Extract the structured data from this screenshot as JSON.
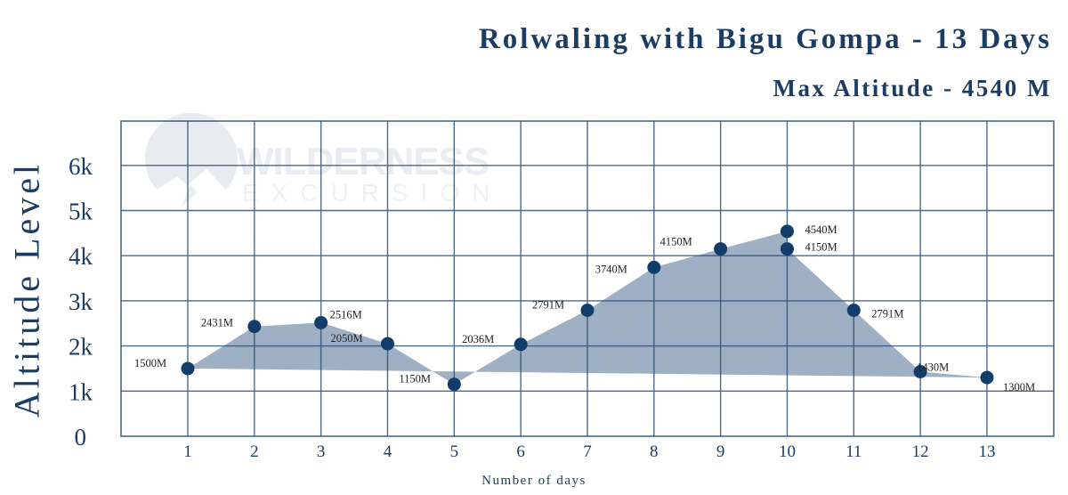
{
  "header": {
    "title": "Rolwaling with Bigu Gompa - 13 Days",
    "subtitle": "Max Altitude - 4540 M"
  },
  "watermark": {
    "line1": "WILDERNESS",
    "line2": "EXCURSION"
  },
  "colors": {
    "primary": "#1b3d63",
    "marker": "#123d6a",
    "fill": "#9fb0c5",
    "grid": "#2c4f78",
    "background": "#ffffff"
  },
  "chart_data": {
    "type": "area",
    "title": "Rolwaling with Bigu Gompa - 13 Days",
    "subtitle": "Max Altitude - 4540 M",
    "xlabel": "Number of days",
    "ylabel": "Altitude Level",
    "x_ticks": [
      "1",
      "2",
      "3",
      "4",
      "5",
      "6",
      "7",
      "8",
      "9",
      "10",
      "11",
      "12",
      "13"
    ],
    "y_ticks": [
      "0",
      "1k",
      "2k",
      "3k",
      "4k",
      "5k",
      "6k"
    ],
    "ylim": [
      0,
      6900
    ],
    "xlim": [
      0,
      14
    ],
    "grid": true,
    "legend": null,
    "points": [
      {
        "day": 1,
        "altitude": 1500,
        "label": "1500M"
      },
      {
        "day": 2,
        "altitude": 2431,
        "label": "2431M"
      },
      {
        "day": 3,
        "altitude": 2516,
        "label": "2516M"
      },
      {
        "day": 4,
        "altitude": 2050,
        "label": "2050M"
      },
      {
        "day": 5,
        "altitude": 1150,
        "label": "1150M"
      },
      {
        "day": 6,
        "altitude": 2036,
        "label": "2036M"
      },
      {
        "day": 7,
        "altitude": 2791,
        "label": "2791M"
      },
      {
        "day": 8,
        "altitude": 3740,
        "label": "3740M"
      },
      {
        "day": 9,
        "altitude": 4150,
        "label": "4150M"
      },
      {
        "day": 10,
        "altitude": 4540,
        "label": "4540M"
      },
      {
        "day": 10,
        "altitude": 4150,
        "label": "4150M"
      },
      {
        "day": 11,
        "altitude": 2791,
        "label": "2791M"
      },
      {
        "day": 12,
        "altitude": 1430,
        "label": "1430M"
      },
      {
        "day": 13,
        "altitude": 1300,
        "label": "1300M"
      }
    ]
  }
}
